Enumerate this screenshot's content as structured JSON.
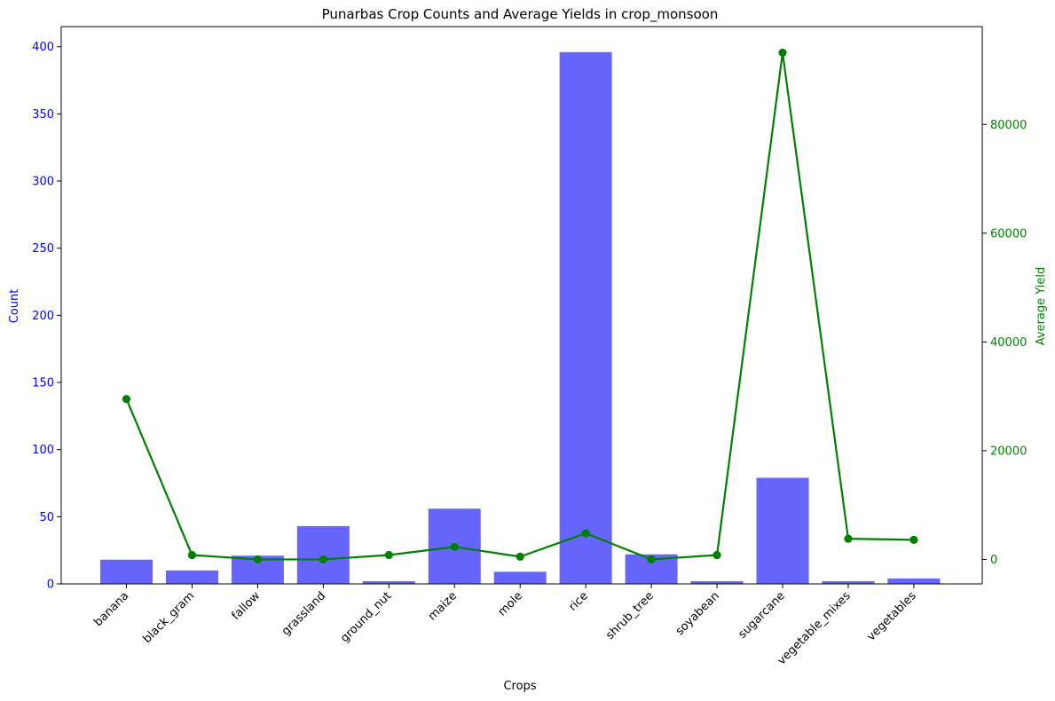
{
  "chart_data": {
    "type": "bar+line",
    "title": "Punarbas Crop Counts and Average Yields in crop_monsoon",
    "xlabel": "Crops",
    "ylabel_left": "Count",
    "ylabel_right": "Average Yield",
    "categories": [
      "banana",
      "black_gram",
      "fallow",
      "grassland",
      "ground_nut",
      "maize",
      "mole",
      "rice",
      "shrub_tree",
      "soyabean",
      "sugarcane",
      "vegetable_mixes",
      "vegetables"
    ],
    "left_ylim": [
      0,
      415
    ],
    "left_ticks": [
      0,
      50,
      100,
      150,
      200,
      250,
      300,
      350,
      400
    ],
    "right_ylim": [
      -4500,
      98000
    ],
    "right_ticks": [
      0,
      20000,
      40000,
      60000,
      80000
    ],
    "series": [
      {
        "kind": "bar",
        "axis": "left",
        "color": "#6666ff",
        "values": [
          18,
          10,
          21,
          43,
          2,
          56,
          9,
          396,
          22,
          2,
          79,
          2,
          4
        ]
      },
      {
        "kind": "line",
        "axis": "right",
        "color": "#008000",
        "values": [
          29500,
          800,
          0,
          0,
          800,
          2300,
          500,
          4800,
          0,
          800,
          93200,
          3800,
          3600
        ]
      }
    ],
    "colors": {
      "left_axis": "#0000ff",
      "right_axis": "#008000",
      "frame": "#000000"
    }
  }
}
